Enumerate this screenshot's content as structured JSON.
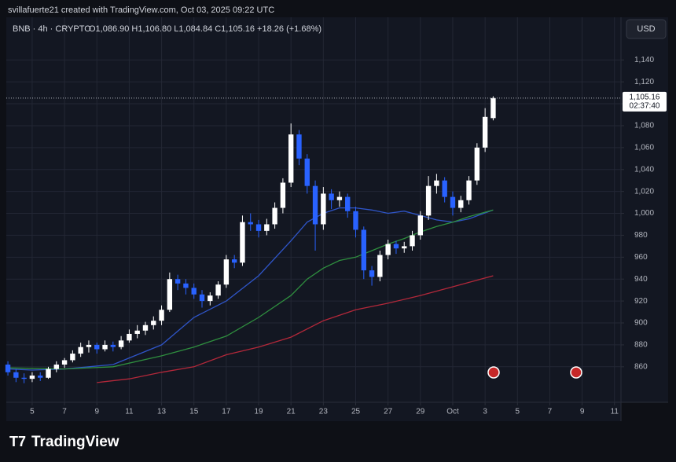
{
  "chart_data": {
    "type": "candlestick",
    "author_line": "svillafuerte21 created with TradingView.com, Oct 03, 2025 09:22 UTC",
    "symbol_line": "BNB · 4h · CRYPTO",
    "legend_values": "O1,086.90 H1,106.80 L1,084.84 C1,105.16 +18.26 (+1.68%)",
    "currency": "USD",
    "brand": "TradingView",
    "up_color": "#ffffff",
    "down_color": "#2962ff",
    "grid": true,
    "x": [
      3.5,
      4,
      4.5,
      5,
      5.5,
      6,
      6.5,
      7,
      7.5,
      8,
      8.5,
      9,
      9.5,
      10,
      10.5,
      11,
      11.5,
      12,
      12.5,
      13,
      13.5,
      14,
      14.5,
      15,
      15.5,
      16,
      16.5,
      17,
      17.5,
      18,
      18.5,
      19,
      19.5,
      20,
      20.5,
      21,
      21.5,
      22,
      22.5,
      23,
      23.5,
      24,
      24.5,
      25,
      25.5,
      26,
      26.5,
      27,
      27.5,
      28,
      28.5,
      29,
      29.5,
      30,
      30.5,
      31,
      31.5,
      32,
      32.5,
      33,
      33.5
    ],
    "open": [
      862,
      855,
      850,
      849,
      852,
      850,
      858,
      862,
      866,
      872,
      878,
      880,
      876,
      880,
      878,
      884,
      890,
      893,
      898,
      902,
      912,
      940,
      936,
      932,
      926,
      920,
      925,
      935,
      958,
      955,
      992,
      990,
      984,
      990,
      1005,
      1028,
      1072,
      1050,
      1025,
      990,
      1018,
      1012,
      1015,
      1002,
      985,
      948,
      942,
      962,
      972,
      968,
      970,
      980,
      998,
      1025,
      1030,
      1015,
      1005,
      1012,
      1030,
      1060,
      1086.9
    ],
    "high": [
      865,
      858,
      854,
      855,
      855,
      860,
      865,
      868,
      875,
      882,
      884,
      882,
      884,
      883,
      888,
      894,
      898,
      901,
      906,
      916,
      946,
      944,
      940,
      936,
      930,
      928,
      938,
      962,
      962,
      998,
      1000,
      994,
      995,
      1010,
      1032,
      1082,
      1076,
      1054,
      1030,
      1024,
      1022,
      1020,
      1018,
      1006,
      988,
      952,
      966,
      976,
      975,
      974,
      984,
      1002,
      1034,
      1036,
      1033,
      1020,
      1016,
      1034,
      1064,
      1096,
      1106.8
    ],
    "low": [
      852,
      846,
      845,
      846,
      847,
      849,
      855,
      859,
      864,
      869,
      873,
      872,
      874,
      874,
      876,
      882,
      886,
      889,
      894,
      898,
      910,
      930,
      926,
      922,
      914,
      916,
      922,
      932,
      950,
      952,
      984,
      978,
      980,
      986,
      1000,
      1024,
      1044,
      1018,
      966,
      985,
      1004,
      1006,
      996,
      978,
      940,
      934,
      938,
      958,
      963,
      964,
      966,
      976,
      994,
      1018,
      1010,
      998,
      1001,
      1008,
      1026,
      1056,
      1084.84
    ],
    "close": [
      855,
      850,
      849,
      852,
      850,
      858,
      862,
      866,
      872,
      878,
      880,
      876,
      880,
      878,
      884,
      890,
      893,
      898,
      902,
      912,
      940,
      936,
      932,
      926,
      920,
      925,
      935,
      958,
      955,
      992,
      990,
      984,
      990,
      1005,
      1028,
      1072,
      1050,
      1025,
      990,
      1018,
      1012,
      1015,
      1002,
      985,
      948,
      942,
      962,
      972,
      968,
      970,
      980,
      998,
      1025,
      1030,
      1015,
      1005,
      1012,
      1030,
      1060,
      1088,
      1105.16
    ],
    "lines": [
      {
        "color": "#2f55c8",
        "x": [
          3.5,
          5,
          7,
          10,
          13,
          15,
          17,
          19,
          21,
          22,
          23,
          24,
          25,
          26,
          27,
          28,
          29,
          30,
          31,
          32,
          33.5
        ],
        "values": [
          858,
          857,
          858,
          862,
          880,
          905,
          920,
          943,
          975,
          992,
          1000,
          1005,
          1005,
          1003,
          1000,
          1002,
          998,
          994,
          992,
          995,
          1003
        ]
      },
      {
        "color": "#2f8f3f",
        "x": [
          3.5,
          7,
          10,
          13,
          15,
          17,
          19,
          21,
          22,
          23,
          24,
          25,
          26,
          27,
          28,
          29,
          30,
          31,
          32,
          33.5
        ],
        "values": [
          859,
          858,
          860,
          870,
          878,
          888,
          905,
          925,
          940,
          950,
          957,
          960,
          966,
          972,
          977,
          983,
          988,
          992,
          997,
          1003
        ]
      },
      {
        "color": "#b3283a",
        "x": [
          9,
          11,
          13,
          15,
          17,
          19,
          21,
          23,
          25,
          27,
          29,
          31,
          33.5
        ],
        "values": [
          845.6,
          849,
          855,
          860,
          871,
          878,
          887,
          902,
          912,
          918,
          925,
          933,
          943
        ]
      }
    ],
    "price_label": {
      "value": 1105.16,
      "label": "1,105.16"
    },
    "countdown": "02:37:40",
    "xlim": [
      3.4,
      41.4
    ],
    "xticks": [
      5,
      7,
      9,
      11,
      13,
      15,
      17,
      19,
      21,
      23,
      25,
      27,
      29,
      {
        "value": 31,
        "label": "Oct"
      },
      {
        "value": 33,
        "label": "3"
      },
      {
        "value": 35,
        "label": "5"
      },
      {
        "value": 37,
        "label": "7"
      },
      {
        "value": 39,
        "label": "9"
      },
      {
        "value": 41,
        "label": "11"
      }
    ],
    "ylim": [
      827.6,
      1178.9
    ],
    "yticks": [
      860,
      880,
      900,
      920,
      940,
      960,
      980,
      {
        "value": 1000,
        "label": "1,000"
      },
      {
        "value": 1020,
        "label": "1,020"
      },
      {
        "value": 1040,
        "label": "1,040"
      },
      {
        "value": 1060,
        "label": "1,060"
      },
      {
        "value": 1080,
        "label": "1,080"
      },
      {
        "value": 1100,
        "label": "1,100"
      },
      {
        "value": 1120,
        "label": "1,120"
      },
      {
        "value": 1140,
        "label": "1,140"
      }
    ]
  }
}
